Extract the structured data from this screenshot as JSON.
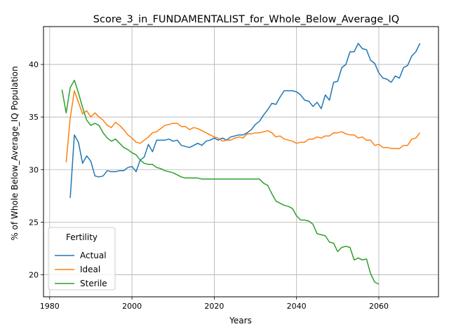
{
  "chart_data": {
    "type": "line",
    "title": "Score_3_in_FUNDAMENTALIST_for_Whole_Below_Average_IQ",
    "xlabel": "Years",
    "ylabel": "% of Whole Below_Average_IQ Population",
    "xlim": [
      1978.5,
      2074.5
    ],
    "ylim": [
      17.9,
      43.6
    ],
    "xticks": [
      1980,
      2000,
      2020,
      2040,
      2060
    ],
    "yticks": [
      20,
      25,
      30,
      35,
      40
    ],
    "grid": true,
    "legend": {
      "title": "Fertility",
      "placement": "lower-left"
    },
    "series": [
      {
        "name": "Actual",
        "color": "#1f77b4",
        "x": [
          1985,
          1986,
          1987,
          1988,
          1989,
          1990,
          1991,
          1992,
          1993,
          1994,
          1995,
          1996,
          1997,
          1998,
          1999,
          2000,
          2001,
          2002,
          2003,
          2004,
          2005,
          2006,
          2007,
          2008,
          2009,
          2010,
          2011,
          2012,
          2013,
          2014,
          2015,
          2016,
          2017,
          2018,
          2019,
          2020,
          2021,
          2022,
          2023,
          2024,
          2025,
          2026,
          2027,
          2028,
          2029,
          2030,
          2031,
          2032,
          2033,
          2034,
          2035,
          2036,
          2037,
          2038,
          2039,
          2040,
          2041,
          2042,
          2043,
          2044,
          2045,
          2046,
          2047,
          2048,
          2049,
          2050,
          2051,
          2052,
          2053,
          2054,
          2055,
          2056,
          2057,
          2058,
          2059,
          2060,
          2061,
          2062,
          2063,
          2064,
          2065,
          2066,
          2067,
          2068,
          2069,
          2070
        ],
        "y": [
          27.3,
          33.3,
          32.6,
          30.6,
          31.3,
          30.8,
          29.4,
          29.3,
          29.4,
          29.9,
          29.8,
          29.8,
          29.9,
          29.9,
          30.2,
          30.3,
          29.8,
          30.9,
          31.2,
          32.4,
          31.7,
          32.8,
          32.8,
          32.8,
          32.9,
          32.7,
          32.8,
          32.3,
          32.2,
          32.1,
          32.3,
          32.5,
          32.3,
          32.7,
          32.8,
          33.0,
          32.8,
          33.0,
          32.8,
          33.1,
          33.2,
          33.3,
          33.3,
          33.5,
          33.8,
          34.3,
          34.6,
          35.2,
          35.7,
          36.3,
          36.2,
          36.9,
          37.5,
          37.5,
          37.5,
          37.4,
          37.1,
          36.6,
          36.5,
          36.0,
          36.4,
          35.8,
          37.1,
          36.6,
          38.3,
          38.4,
          39.7,
          40.0,
          41.2,
          41.2,
          42.0,
          41.5,
          41.4,
          40.4,
          40.1,
          39.2,
          38.7,
          38.6,
          38.3,
          38.9,
          38.7,
          39.7,
          39.9,
          40.8,
          41.2,
          42.0
        ]
      },
      {
        "name": "Ideal",
        "color": "#ff7f0e",
        "x": [
          1984,
          1985,
          1986,
          1987,
          1988,
          1989,
          1990,
          1991,
          1992,
          1993,
          1994,
          1995,
          1996,
          1997,
          1998,
          1999,
          2000,
          2001,
          2002,
          2003,
          2004,
          2005,
          2006,
          2007,
          2008,
          2009,
          2010,
          2011,
          2012,
          2013,
          2014,
          2015,
          2016,
          2017,
          2018,
          2019,
          2020,
          2021,
          2022,
          2023,
          2024,
          2025,
          2026,
          2027,
          2028,
          2029,
          2030,
          2031,
          2032,
          2033,
          2034,
          2035,
          2036,
          2037,
          2038,
          2039,
          2040,
          2041,
          2042,
          2043,
          2044,
          2045,
          2046,
          2047,
          2048,
          2049,
          2050,
          2051,
          2052,
          2053,
          2054,
          2055,
          2056,
          2057,
          2058,
          2059,
          2060,
          2061,
          2062,
          2063,
          2064,
          2065,
          2066,
          2067,
          2068,
          2069,
          2070
        ],
        "y": [
          30.7,
          34.9,
          37.5,
          36.4,
          35.3,
          35.6,
          35.0,
          35.4,
          35.0,
          34.7,
          34.2,
          34.0,
          34.5,
          34.2,
          33.8,
          33.3,
          33.0,
          32.6,
          32.5,
          32.8,
          33.1,
          33.5,
          33.6,
          33.9,
          34.2,
          34.3,
          34.4,
          34.4,
          34.1,
          34.1,
          33.8,
          34.0,
          33.9,
          33.7,
          33.5,
          33.3,
          33.1,
          33.0,
          32.7,
          32.8,
          32.8,
          33.0,
          33.1,
          33.0,
          33.4,
          33.4,
          33.5,
          33.5,
          33.6,
          33.7,
          33.5,
          33.1,
          33.2,
          32.9,
          32.8,
          32.7,
          32.5,
          32.6,
          32.6,
          32.9,
          32.9,
          33.1,
          33.0,
          33.2,
          33.2,
          33.5,
          33.5,
          33.6,
          33.4,
          33.3,
          33.3,
          33.0,
          33.1,
          32.8,
          32.8,
          32.3,
          32.4,
          32.1,
          32.1,
          32.0,
          32.0,
          32.0,
          32.3,
          32.3,
          32.9,
          33.0,
          33.5
        ]
      },
      {
        "name": "Sterile",
        "color": "#2ca02c",
        "x": [
          1983,
          1984,
          1985,
          1986,
          1987,
          1988,
          1989,
          1990,
          1991,
          1992,
          1993,
          1994,
          1995,
          1996,
          1997,
          1998,
          1999,
          2000,
          2001,
          2002,
          2003,
          2004,
          2005,
          2006,
          2007,
          2008,
          2009,
          2010,
          2011,
          2012,
          2013,
          2014,
          2015,
          2016,
          2017,
          2018,
          2019,
          2020,
          2021,
          2022,
          2023,
          2024,
          2025,
          2026,
          2027,
          2028,
          2029,
          2030,
          2031,
          2032,
          2033,
          2034,
          2035,
          2036,
          2037,
          2038,
          2039,
          2040,
          2041,
          2042,
          2043,
          2044,
          2045,
          2046,
          2047,
          2048,
          2049,
          2050,
          2051,
          2052,
          2053,
          2054,
          2055,
          2056,
          2057,
          2058,
          2059,
          2060
        ],
        "y": [
          37.6,
          35.4,
          37.8,
          38.5,
          37.3,
          35.9,
          34.7,
          34.2,
          34.4,
          34.2,
          33.5,
          33.0,
          32.7,
          32.9,
          32.5,
          32.1,
          31.9,
          31.6,
          31.4,
          30.9,
          30.6,
          30.5,
          30.5,
          30.2,
          30.1,
          29.9,
          29.8,
          29.7,
          29.5,
          29.3,
          29.2,
          29.2,
          29.2,
          29.2,
          29.1,
          29.1,
          29.1,
          29.1,
          29.1,
          29.1,
          29.1,
          29.1,
          29.1,
          29.1,
          29.1,
          29.1,
          29.1,
          29.1,
          29.1,
          28.7,
          28.5,
          27.7,
          27.0,
          26.8,
          26.6,
          26.5,
          26.3,
          25.6,
          25.2,
          25.2,
          25.1,
          24.8,
          23.9,
          23.8,
          23.7,
          23.1,
          23.0,
          22.2,
          22.6,
          22.7,
          22.6,
          21.4,
          21.6,
          21.4,
          21.5,
          20.1,
          19.3,
          19.1
        ]
      }
    ]
  }
}
